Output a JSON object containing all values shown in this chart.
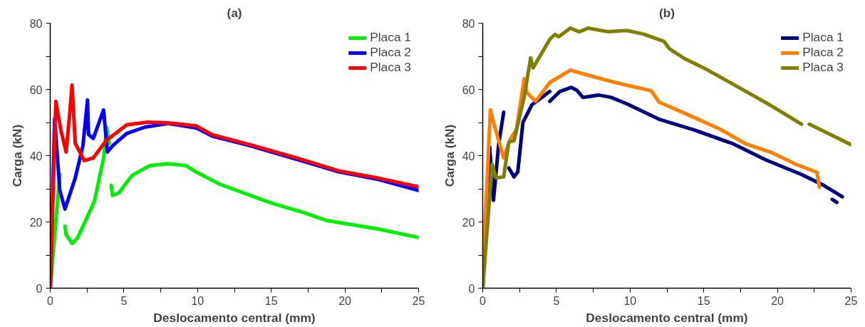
{
  "chart_data": [
    {
      "type": "line",
      "title": "(a)",
      "xlabel": "Deslocamento central (mm)",
      "ylabel": "Carga (kN)",
      "xlim": [
        0,
        25
      ],
      "ylim": [
        0,
        80
      ],
      "xticks": [
        0,
        {
          "value": 2.5,
          "label": null
        },
        5,
        {
          "value": 7.5,
          "label": null
        },
        10,
        {
          "value": 12.5,
          "label": null
        },
        15,
        {
          "value": 17.5,
          "label": null
        },
        20,
        {
          "value": 22.5,
          "label": null
        },
        25
      ],
      "yticks": [
        0,
        {
          "value": 10,
          "label": null
        },
        20,
        {
          "value": 30,
          "label": null
        },
        40,
        {
          "value": 50,
          "label": null
        },
        60,
        {
          "value": 70,
          "label": null
        },
        80
      ],
      "grid": false,
      "legend": "top right",
      "line_style": "solid",
      "marker": "none",
      "series": [
        {
          "name": "Placa 1",
          "color": "#00ee00",
          "x": [
            0,
            0.65,
            null,
            1.0,
            1.08,
            1.49,
            1.87,
            3.0,
            3.62,
            3.83,
            4.0,
            null,
            4.14,
            4.23,
            4.67,
            5.54,
            6.76,
            7.99,
            9.2,
            9.9,
            11.5,
            14.95,
            17.2,
            18.7,
            22.2,
            25
          ],
          "values": [
            0,
            34.4,
            null,
            18.7,
            16.1,
            13.5,
            15.3,
            26.2,
            39.3,
            48.6,
            43.7,
            null,
            31.0,
            28.0,
            28.8,
            34.0,
            37.0,
            37.6,
            37.0,
            35.1,
            31.4,
            25.8,
            22.8,
            20.5,
            17.9,
            15.3
          ]
        },
        {
          "name": "Placa 2",
          "color": "#0000ff",
          "x": [
            0,
            0.3,
            0.65,
            1.0,
            1.7,
            2.22,
            2.53,
            2.6,
            2.92,
            3.62,
            3.88,
            4.23,
            5.19,
            6.42,
            8.0,
            9.9,
            11.0,
            13.57,
            16.8,
            19.6,
            22.2,
            25
          ],
          "values": [
            0,
            51.2,
            29.5,
            23.9,
            33.3,
            43.0,
            56.8,
            46.4,
            45.2,
            53.8,
            41.1,
            43.0,
            46.7,
            48.6,
            49.7,
            48.4,
            45.9,
            43.0,
            38.8,
            35.1,
            32.9,
            29.5
          ]
        },
        {
          "name": "Placa 3",
          "color": "#ff0000",
          "x": [
            0,
            0.38,
            0.73,
            1.08,
            1.35,
            1.48,
            1.7,
            2.31,
            2.92,
            3.79,
            5.19,
            6.6,
            8.0,
            9.9,
            11.0,
            13.57,
            16.8,
            19.6,
            22.2,
            25
          ],
          "values": [
            0,
            56.4,
            47.5,
            41.1,
            54.2,
            61.3,
            43.7,
            38.5,
            39.3,
            44.5,
            49.3,
            50.1,
            49.9,
            49.0,
            46.3,
            43.3,
            39.2,
            35.4,
            33.3,
            30.6
          ]
        }
      ]
    },
    {
      "type": "line",
      "title": "(b)",
      "xlabel": "Deslocamento central (mm)",
      "ylabel": "Carga (kN)",
      "xlim": [
        0,
        25
      ],
      "ylim": [
        0,
        80
      ],
      "xticks": [
        0,
        {
          "value": 2.5,
          "label": null
        },
        5,
        {
          "value": 7.5,
          "label": null
        },
        10,
        {
          "value": 12.5,
          "label": null
        },
        15,
        {
          "value": 17.5,
          "label": null
        },
        20,
        {
          "value": 22.5,
          "label": null
        },
        25
      ],
      "yticks": [
        0,
        {
          "value": 10,
          "label": null
        },
        20,
        {
          "value": 30,
          "label": null
        },
        40,
        {
          "value": 50,
          "label": null
        },
        60,
        {
          "value": 70,
          "label": null
        },
        80
      ],
      "grid": false,
      "legend": "top right",
      "line_style": "solid",
      "marker": "none",
      "series": [
        {
          "name": "Placa 1",
          "color": "#000080",
          "x": [
            0,
            0.47,
            0.73,
            1.08,
            1.42,
            null,
            1.77,
            2.12,
            2.38,
            2.73,
            3.33,
            4.55,
            null,
            4.55,
            5.24,
            6.02,
            6.37,
            6.8,
            7.85,
            8.7,
            9.76,
            11.96,
            14.38,
            16.98,
            19.22,
            21.64,
            23.03,
            24.4,
            null,
            23.72,
            24.03
          ],
          "values": [
            0,
            42.6,
            26.5,
            43.4,
            53.1,
            null,
            36.3,
            33.6,
            35.1,
            50.1,
            55.3,
            59.4,
            null,
            56.4,
            59.4,
            60.6,
            59.8,
            57.6,
            58.3,
            57.6,
            55.7,
            51.0,
            47.7,
            43.6,
            38.7,
            34.3,
            31.3,
            27.6,
            null,
            26.8,
            25.9
          ]
        },
        {
          "name": "Placa 2",
          "color": "#ff8000",
          "x": [
            0,
            0.52,
            0.73,
            1.42,
            1.86,
            2.29,
            2.81,
            2.99,
            3.59,
            4.55,
            5.94,
            7.15,
            8.37,
            9.76,
            11.44,
            11.96,
            13.86,
            16.1,
            17.84,
            19.57,
            21.3,
            22.68,
            22.85
          ],
          "values": [
            4.5,
            53.8,
            50.1,
            39.3,
            44.9,
            47.9,
            63.2,
            59.1,
            56.4,
            62.1,
            65.8,
            64.3,
            62.8,
            61.3,
            59.6,
            56.2,
            52.5,
            48.0,
            43.6,
            41.0,
            37.3,
            35.0,
            30.5
          ]
        },
        {
          "name": "Placa 3",
          "color": "#808000",
          "x": [
            0,
            0.64,
            0.9,
            1.42,
            1.77,
            2.12,
            2.81,
            3.25,
            3.42,
            4.55,
            4.9,
            5.16,
            5.94,
            6.55,
            7.15,
            8.54,
            9.76,
            10.92,
            12.3,
            12.66,
            13.7,
            15.25,
            17.5,
            19.57,
            21.64,
            null,
            22.16,
            23.37,
            25
          ],
          "values": [
            0,
            37.4,
            33.3,
            33.6,
            44.1,
            44.5,
            57.6,
            69.5,
            66.5,
            75.1,
            76.6,
            75.9,
            78.5,
            77.4,
            78.5,
            77.4,
            77.8,
            76.7,
            74.5,
            72.3,
            69.3,
            65.9,
            60.3,
            55.1,
            49.5,
            null,
            49.5,
            46.9,
            43.3
          ]
        }
      ]
    }
  ]
}
